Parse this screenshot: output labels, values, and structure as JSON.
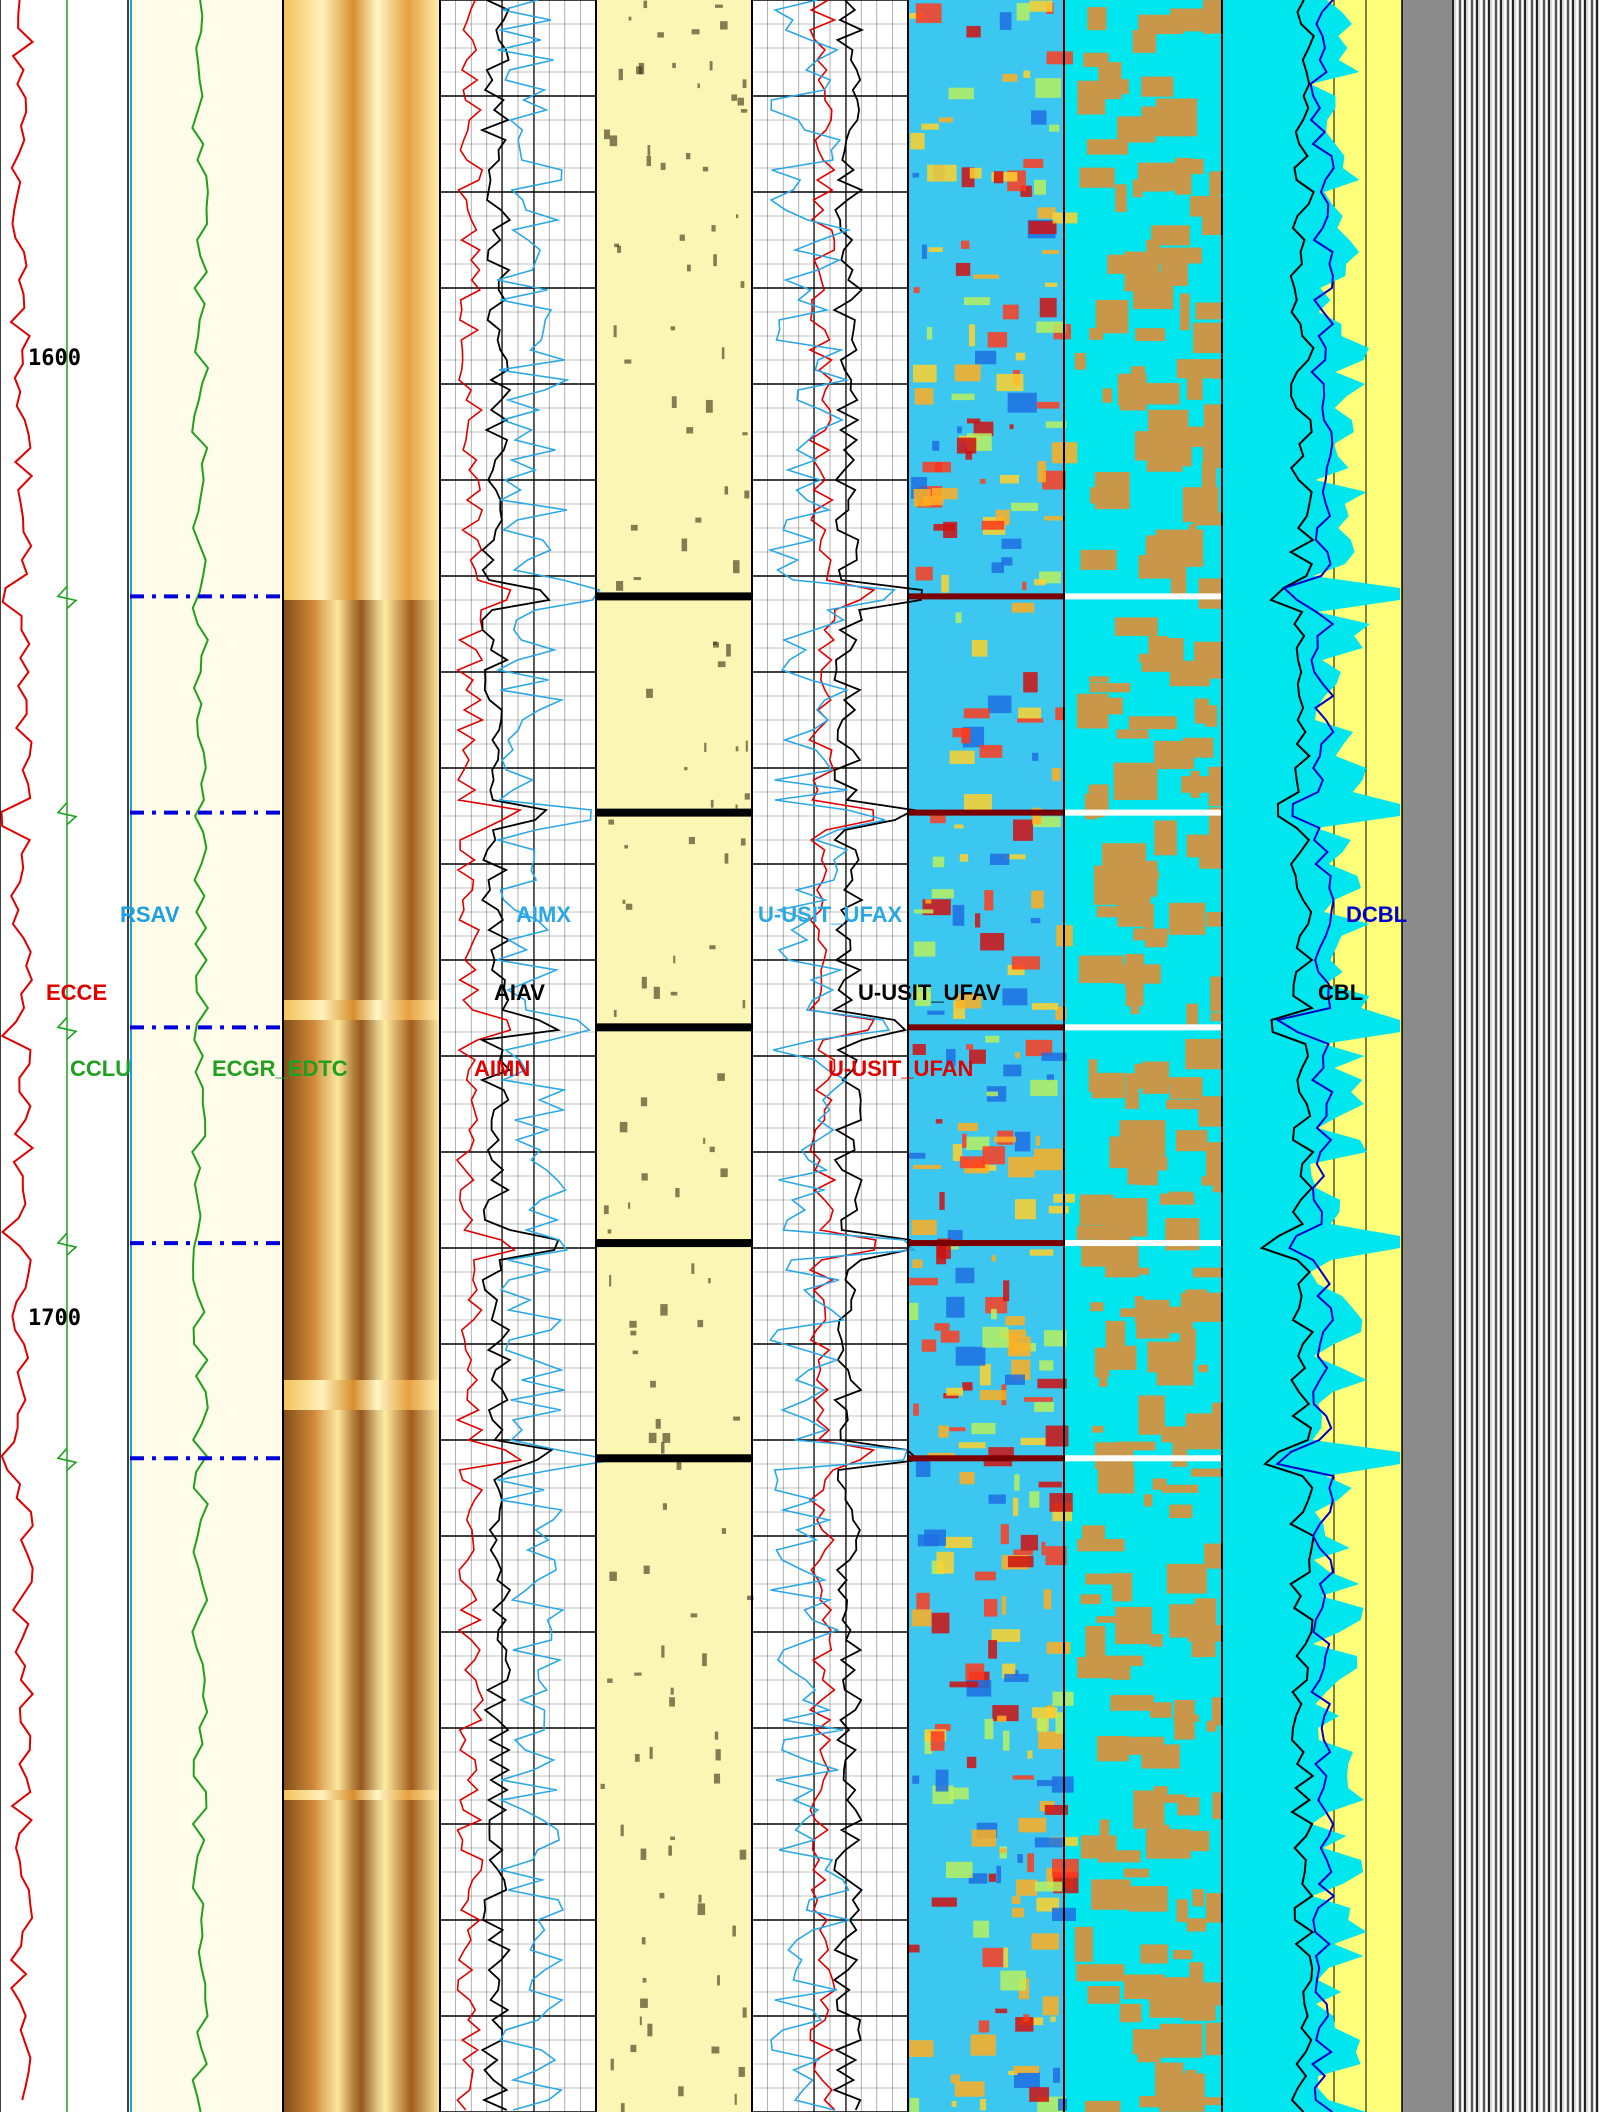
{
  "chart_data": {
    "type": "line",
    "title": "",
    "depth_axis": {
      "direction": "down",
      "range": [
        1440,
        1860
      ],
      "tick_labels": [
        "1600",
        "1700"
      ]
    },
    "collar_depths": [
      1558.6,
      1601.6,
      1644.3,
      1687.2,
      1730.0
    ],
    "tracks": [
      {
        "id": "track1",
        "curves": [
          "ECCE",
          "CCLU"
        ]
      },
      {
        "id": "track2",
        "curves": [
          "RSAV",
          "ECGR_EDTC"
        ]
      },
      {
        "id": "track3",
        "type": "image",
        "palette": "amplitude-brown-yellow"
      },
      {
        "id": "track4",
        "curves": [
          "AIMX",
          "AIAV",
          "AIMN"
        ],
        "grid": true
      },
      {
        "id": "track5",
        "type": "image",
        "palette": "yellow-black"
      },
      {
        "id": "track6",
        "curves": [
          "U-USIT_UFAX",
          "U-USIT_UFAV",
          "U-USIT_UFAN"
        ],
        "grid": true
      },
      {
        "id": "track7",
        "type": "image",
        "palette": "rainbow"
      },
      {
        "id": "track8",
        "type": "image",
        "palette": "cyan-brown-map"
      },
      {
        "id": "track9",
        "curves": [
          "DCBL",
          "CBL"
        ],
        "fill": "cyan-yellow"
      },
      {
        "id": "track10",
        "type": "waveform",
        "palette": "grayscale"
      }
    ],
    "legend_placement": "inline-on-tracks"
  },
  "labels": {
    "rsav": "RSAV",
    "ecce": "ECCE",
    "cclu": "CCLU",
    "ecgr": "ECGR_EDTC",
    "aimx": "AIMX",
    "aiav": "AIAV",
    "aimn": "AIMN",
    "ufax": "U-USIT_UFAX",
    "ufav": "U-USIT_UFAV",
    "ufan": "U-USIT_UFAN",
    "dcbl": "DCBL",
    "cbl": "CBL"
  },
  "depth_ticks": [
    "1600",
    "1700"
  ],
  "colors": {
    "ecce": "#e00000",
    "cclu": "#1fa01f",
    "rsav": "#1a9fe0",
    "ecgr": "#1fa01f",
    "aimx": "#2aa8e6",
    "aiav": "#000000",
    "aimn": "#e00000",
    "ufax": "#2aa8e6",
    "ufav": "#000000",
    "ufan": "#e00000",
    "dcbl": "#0000cc",
    "cbl": "#000000",
    "cyan_fill": "#00e6ee",
    "yellow_fill": "#ffff7a",
    "brown": "#c8974a"
  }
}
